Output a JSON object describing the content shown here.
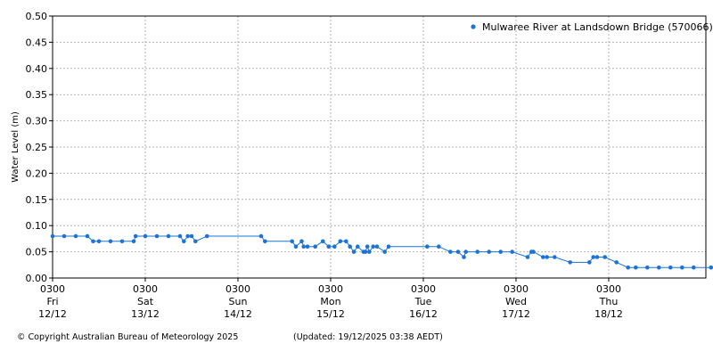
{
  "chart_data": {
    "type": "line",
    "ylabel": "Water Level (m)",
    "ylim": [
      0,
      0.5
    ],
    "yticks": [
      "0.00",
      "0.05",
      "0.10",
      "0.15",
      "0.20",
      "0.25",
      "0.30",
      "0.35",
      "0.40",
      "0.45",
      "0.50"
    ],
    "xlim": [
      0,
      171
    ],
    "xaxis_unit": "hours from 03:00 Fri 12/12",
    "xticks": [
      {
        "time": "0300",
        "day": "Fri",
        "date": "12/12"
      },
      {
        "time": "0300",
        "day": "Sat",
        "date": "13/12"
      },
      {
        "time": "0300",
        "day": "Sun",
        "date": "14/12"
      },
      {
        "time": "0300",
        "day": "Mon",
        "date": "15/12"
      },
      {
        "time": "0300",
        "day": "Tue",
        "date": "16/12"
      },
      {
        "time": "0300",
        "day": "Wed",
        "date": "17/12"
      },
      {
        "time": "0300",
        "day": "Thu",
        "date": "18/12"
      }
    ],
    "grid": true,
    "legend_position": "top-right",
    "color": "#1a73d8",
    "series": [
      {
        "name": "Mulwaree River at Landsdown Bridge (570066)",
        "points": [
          [
            0,
            0.08
          ],
          [
            3,
            0.08
          ],
          [
            6,
            0.08
          ],
          [
            9,
            0.08
          ],
          [
            10.5,
            0.07
          ],
          [
            12,
            0.07
          ],
          [
            15,
            0.07
          ],
          [
            18,
            0.07
          ],
          [
            21,
            0.07
          ],
          [
            21.5,
            0.08
          ],
          [
            24,
            0.08
          ],
          [
            27,
            0.08
          ],
          [
            30,
            0.08
          ],
          [
            33,
            0.08
          ],
          [
            34,
            0.07
          ],
          [
            35,
            0.08
          ],
          [
            36,
            0.08
          ],
          [
            37,
            0.07
          ],
          [
            40,
            0.08
          ],
          [
            54,
            0.08
          ],
          [
            55,
            0.07
          ],
          [
            62,
            0.07
          ],
          [
            63,
            0.06
          ],
          [
            64.5,
            0.07
          ],
          [
            65,
            0.06
          ],
          [
            66,
            0.06
          ],
          [
            68,
            0.06
          ],
          [
            70,
            0.07
          ],
          [
            71.5,
            0.06
          ],
          [
            73,
            0.06
          ],
          [
            74.5,
            0.07
          ],
          [
            76,
            0.07
          ],
          [
            77,
            0.06
          ],
          [
            78,
            0.05
          ],
          [
            79,
            0.06
          ],
          [
            80.5,
            0.05
          ],
          [
            81,
            0.05
          ],
          [
            81.5,
            0.06
          ],
          [
            82,
            0.05
          ],
          [
            83,
            0.06
          ],
          [
            84,
            0.06
          ],
          [
            86,
            0.05
          ],
          [
            87,
            0.06
          ],
          [
            97,
            0.06
          ],
          [
            100,
            0.06
          ],
          [
            103,
            0.05
          ],
          [
            105,
            0.05
          ],
          [
            106.5,
            0.04
          ],
          [
            107,
            0.05
          ],
          [
            110,
            0.05
          ],
          [
            113,
            0.05
          ],
          [
            116,
            0.05
          ],
          [
            119,
            0.05
          ],
          [
            123,
            0.04
          ],
          [
            124,
            0.05
          ],
          [
            124.5,
            0.05
          ],
          [
            127,
            0.04
          ],
          [
            128,
            0.04
          ],
          [
            130,
            0.04
          ],
          [
            134,
            0.03
          ],
          [
            139,
            0.03
          ],
          [
            140,
            0.04
          ],
          [
            141,
            0.04
          ],
          [
            143,
            0.04
          ],
          [
            146,
            0.03
          ],
          [
            149,
            0.02
          ],
          [
            151,
            0.02
          ],
          [
            154,
            0.02
          ],
          [
            157,
            0.02
          ],
          [
            160,
            0.02
          ],
          [
            163,
            0.02
          ],
          [
            166,
            0.02
          ],
          [
            170.5,
            0.02
          ]
        ]
      }
    ]
  },
  "footer": {
    "copyright": "© Copyright Australian Bureau of Meteorology 2025",
    "updated": "(Updated: 19/12/2025 03:38 AEDT)"
  }
}
